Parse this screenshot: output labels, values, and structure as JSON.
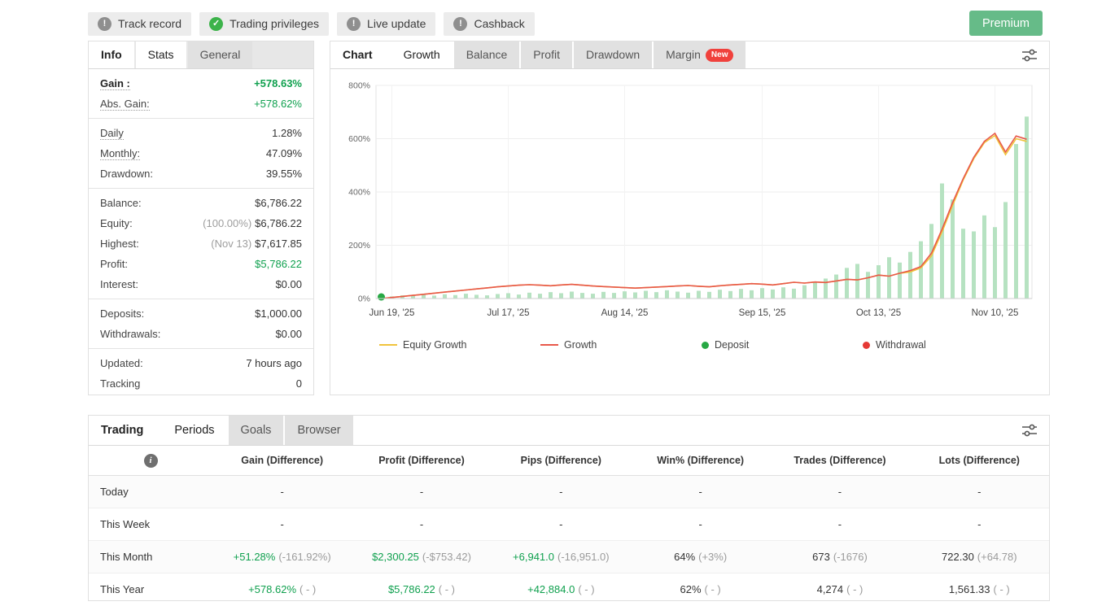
{
  "colors": {
    "positive": "#0fa04e",
    "muted": "#9b9b9b",
    "bar_green": "#b6e2c1",
    "growth_line": "#e8584a",
    "equity_line": "#f0c33c",
    "deposit_dot": "#27a844",
    "withdrawal_dot": "#e53935"
  },
  "top_bar": {
    "badges": [
      {
        "label": "Track record",
        "icon": "exclamation-icon",
        "glyph": "!",
        "icon_color": "#8f8f8f"
      },
      {
        "label": "Trading privileges",
        "icon": "check-icon",
        "glyph": "✓",
        "icon_color": "#3cb34a"
      },
      {
        "label": "Live update",
        "icon": "exclamation-icon",
        "glyph": "!",
        "icon_color": "#8f8f8f"
      },
      {
        "label": "Cashback",
        "icon": "exclamation-icon",
        "glyph": "!",
        "icon_color": "#8f8f8f"
      }
    ],
    "premium_label": "Premium"
  },
  "info_panel": {
    "tabs": [
      {
        "label": "Info",
        "active": true,
        "bold": true
      },
      {
        "label": "Stats",
        "active": true
      },
      {
        "label": "General"
      }
    ],
    "stats_groups": [
      [
        {
          "label": "Gain :",
          "value": "+578.63%",
          "green": true,
          "bold": true,
          "underline": true
        },
        {
          "label": "Abs. Gain:",
          "value": "+578.62%",
          "green": true,
          "underline": true
        }
      ],
      [
        {
          "label": "Daily",
          "value": "1.28%",
          "underline": true
        },
        {
          "label": "Monthly:",
          "value": "47.09%",
          "underline": true
        },
        {
          "label": "Drawdown:",
          "value": "39.55%"
        }
      ],
      [
        {
          "label": "Balance:",
          "value": "$6,786.22"
        },
        {
          "label": "Equity:",
          "pre": "(100.00%)",
          "value": "$6,786.22"
        },
        {
          "label": "Highest:",
          "pre": "(Nov 13)",
          "value": "$7,617.85"
        },
        {
          "label": "Profit:",
          "value": "$5,786.22",
          "green": true
        },
        {
          "label": "Interest:",
          "value": "$0.00"
        }
      ],
      [
        {
          "label": "Deposits:",
          "value": "$1,000.00"
        },
        {
          "label": "Withdrawals:",
          "value": "$0.00"
        }
      ],
      [
        {
          "label": "Updated:",
          "value": "7 hours ago"
        },
        {
          "label": "Tracking",
          "value": "0"
        }
      ]
    ]
  },
  "chart_panel": {
    "tabs": [
      {
        "label": "Chart",
        "title": true
      },
      {
        "label": "Growth",
        "active": true
      },
      {
        "label": "Balance"
      },
      {
        "label": "Profit"
      },
      {
        "label": "Drawdown"
      },
      {
        "label": "Margin",
        "badge": "New"
      }
    ],
    "legend": [
      {
        "label": "Equity Growth",
        "type": "line",
        "color": "#f0c33c"
      },
      {
        "label": "Growth",
        "type": "line",
        "color": "#e8584a"
      },
      {
        "label": "Deposit",
        "type": "dot",
        "color": "#27a844"
      },
      {
        "label": "Withdrawal",
        "type": "dot",
        "color": "#e53935"
      }
    ]
  },
  "chart_data": {
    "type": "bar",
    "title": "Growth",
    "ylabel": "%",
    "ylim": [
      0,
      800
    ],
    "y_ticks": [
      0,
      200,
      400,
      600,
      800
    ],
    "x_tick_labels": [
      "Jun 19, '25",
      "Jul 17, '25",
      "Aug 14, '25",
      "Sep 15, '25",
      "Oct 13, '25",
      "Nov 10, '25"
    ],
    "x_tick_indices": [
      1,
      12,
      23,
      36,
      47,
      58
    ],
    "bar_color": "#b6e2c1",
    "bars_name": "Equity Growth bars (%)",
    "bars": [
      3,
      8,
      12,
      10,
      15,
      11,
      16,
      13,
      18,
      14,
      12,
      17,
      20,
      15,
      22,
      18,
      24,
      20,
      26,
      21,
      18,
      25,
      21,
      27,
      23,
      29,
      24,
      31,
      26,
      22,
      29,
      25,
      33,
      28,
      36,
      31,
      39,
      34,
      42,
      37,
      50,
      62,
      75,
      90,
      115,
      130,
      100,
      125,
      155,
      135,
      175,
      215,
      280,
      432,
      372,
      262,
      252,
      312,
      268,
      362,
      580,
      683
    ],
    "series": [
      {
        "name": "Equity Growth",
        "color": "#f0c33c",
        "values": [
          0,
          4,
          8,
          12,
          16,
          20,
          24,
          28,
          32,
          36,
          40,
          44,
          47,
          50,
          52,
          50,
          48,
          51,
          53,
          50,
          47,
          45,
          43,
          41,
          39,
          41,
          43,
          45,
          47,
          49,
          46,
          44,
          48,
          51,
          53,
          56,
          54,
          51,
          56,
          61,
          58,
          62,
          60,
          66,
          72,
          70,
          78,
          88,
          84,
          95,
          100,
          115,
          160,
          250,
          350,
          445,
          525,
          585,
          612,
          540,
          600,
          590
        ]
      },
      {
        "name": "Growth",
        "color": "#e8584a",
        "values": [
          0,
          4,
          8,
          12,
          16,
          20,
          24,
          28,
          32,
          36,
          40,
          44,
          47,
          50,
          52,
          50,
          48,
          51,
          53,
          50,
          47,
          45,
          43,
          41,
          39,
          41,
          43,
          45,
          47,
          49,
          46,
          44,
          48,
          51,
          53,
          56,
          54,
          51,
          56,
          61,
          58,
          62,
          60,
          66,
          72,
          70,
          78,
          88,
          84,
          95,
          105,
          120,
          170,
          260,
          360,
          450,
          530,
          590,
          620,
          550,
          610,
          598
        ]
      }
    ],
    "markers": [
      {
        "type": "deposit",
        "index": 0,
        "value": 6,
        "color": "#27a844"
      }
    ]
  },
  "periods_panel": {
    "tabs": [
      {
        "label": "Trading",
        "title": true
      },
      {
        "label": "Periods",
        "active": true
      },
      {
        "label": "Goals"
      },
      {
        "label": "Browser"
      }
    ],
    "table": {
      "headers": [
        "Gain (Difference)",
        "Profit (Difference)",
        "Pips (Difference)",
        "Win% (Difference)",
        "Trades (Difference)",
        "Lots (Difference)"
      ],
      "rows": [
        {
          "label": "Today",
          "cells": [
            {
              "value": "-"
            },
            {
              "value": "-"
            },
            {
              "value": "-"
            },
            {
              "value": "-"
            },
            {
              "value": "-"
            },
            {
              "value": "-"
            }
          ]
        },
        {
          "label": "This Week",
          "cells": [
            {
              "value": "-"
            },
            {
              "value": "-"
            },
            {
              "value": "-"
            },
            {
              "value": "-"
            },
            {
              "value": "-"
            },
            {
              "value": "-"
            }
          ]
        },
        {
          "label": "This Month",
          "cells": [
            {
              "value": "+51.28%",
              "diff": "(-161.92%)",
              "green": true
            },
            {
              "value": "$2,300.25",
              "diff": "(-$753.42)",
              "green": true
            },
            {
              "value": "+6,941.0",
              "diff": "(-16,951.0)",
              "green": true
            },
            {
              "value": "64%",
              "diff": "(+3%)"
            },
            {
              "value": "673",
              "diff": "(-1676)"
            },
            {
              "value": "722.30",
              "diff": "(+64.78)"
            }
          ]
        },
        {
          "label": "This Year",
          "cells": [
            {
              "value": "+578.62%",
              "diff": "( - )",
              "green": true
            },
            {
              "value": "$5,786.22",
              "diff": "( - )",
              "green": true
            },
            {
              "value": "+42,884.0",
              "diff": "( - )",
              "green": true
            },
            {
              "value": "62%",
              "diff": "( - )"
            },
            {
              "value": "4,274",
              "diff": "( - )"
            },
            {
              "value": "1,561.33",
              "diff": "( - )"
            }
          ]
        }
      ]
    }
  }
}
